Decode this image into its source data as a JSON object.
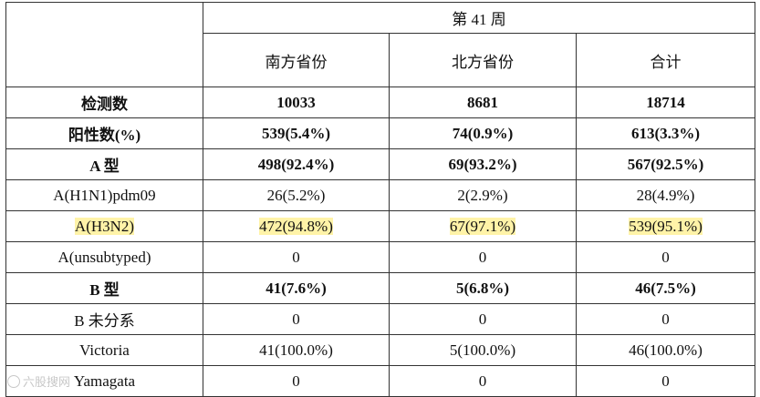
{
  "header": {
    "week": "第 41 周",
    "columns": [
      "南方省份",
      "北方省份",
      "合计"
    ]
  },
  "rows": [
    {
      "label": "检测数",
      "south": "10033",
      "north": "8681",
      "total": "18714"
    },
    {
      "label": "阳性数(%)",
      "south": "539(5.4%)",
      "north": "74(0.9%)",
      "total": "613(3.3%)"
    },
    {
      "label": "A 型",
      "south": "498(92.4%)",
      "north": "69(93.2%)",
      "total": "567(92.5%)"
    },
    {
      "label": "A(H1N1)pdm09",
      "south": "26(5.2%)",
      "north": "2(2.9%)",
      "total": "28(4.9%)"
    },
    {
      "label": "A(H3N2)",
      "south": "472(94.8%)",
      "north": "67(97.1%)",
      "total": "539(95.1%)"
    },
    {
      "label": "A(unsubtyped)",
      "south": "0",
      "north": "0",
      "total": "0"
    },
    {
      "label": "B 型",
      "south": "41(7.6%)",
      "north": "5(6.8%)",
      "total": "46(7.5%)"
    },
    {
      "label": "B 未分系",
      "south": "0",
      "north": "0",
      "total": "0"
    },
    {
      "label": "Victoria",
      "south": "41(100.0%)",
      "north": "5(100.0%)",
      "total": "46(100.0%)"
    },
    {
      "label": "Yamagata",
      "south": "0",
      "north": "0",
      "total": "0"
    }
  ],
  "highlight_color": "#fff3a8",
  "watermark": {
    "icon": "logo-icon",
    "text": "六股搜网"
  }
}
